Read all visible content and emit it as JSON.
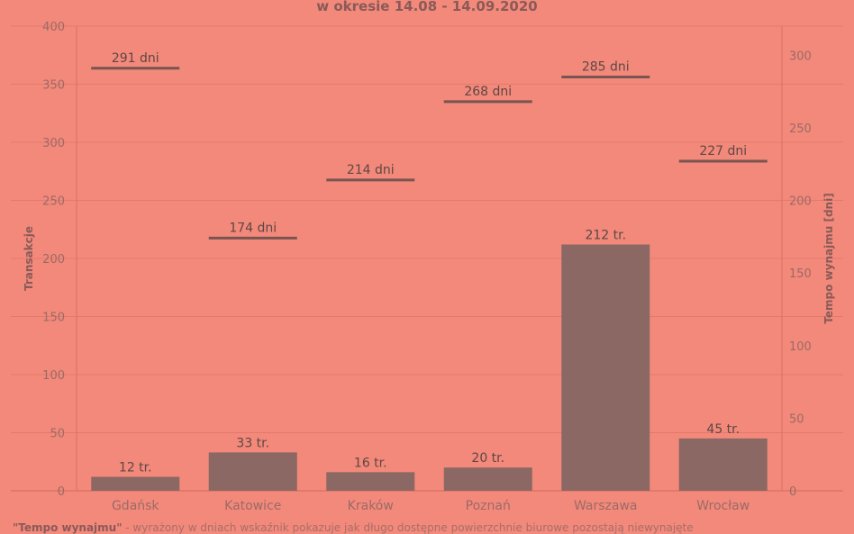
{
  "title": "w okresie 14.08 - 14.09.2020",
  "footnote": {
    "term": "\"Tempo wynajmu\"",
    "text": " - wyrażony w dniach wskaźnik pokazuje jak długo dostępne powierzchnie biurowe pozostają niewynajęte"
  },
  "colors": {
    "background": "#f2897a",
    "bar": "#8b6863",
    "line": "#7a5450"
  },
  "chart_data": {
    "type": "bar",
    "categories": [
      "Gdańsk",
      "Katowice",
      "Kraków",
      "Poznań",
      "Warszawa",
      "Wrocław"
    ],
    "series": [
      {
        "axis": "left",
        "mark": "bar",
        "values": [
          12,
          33,
          16,
          20,
          212,
          45
        ],
        "labels": [
          "12 tr.",
          "33 tr.",
          "16 tr.",
          "20 tr.",
          "212 tr.",
          "45 tr."
        ]
      },
      {
        "axis": "right",
        "mark": "horizontal-line",
        "values": [
          291,
          174,
          214,
          268,
          285,
          227
        ],
        "labels": [
          "291 dni",
          "174 dni",
          "214 dni",
          "268 dni",
          "285 dni",
          "227 dni"
        ]
      }
    ],
    "ylabel": "Transakcje",
    "y2label": "Tempo wynajmu [dni]",
    "ylim": [
      0,
      400
    ],
    "y2lim": [
      0,
      320
    ],
    "yticks": [
      0,
      50,
      100,
      150,
      200,
      250,
      300,
      350,
      400
    ],
    "y2ticks": [
      0,
      50,
      100,
      150,
      200,
      250,
      300
    ],
    "grid": true
  }
}
